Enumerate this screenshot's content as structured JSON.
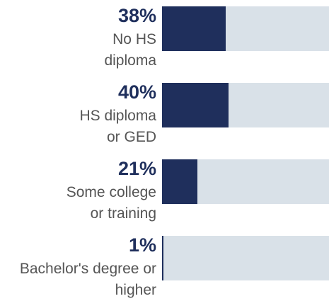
{
  "chart_data": {
    "type": "bar",
    "orientation": "horizontal",
    "categories": [
      "No HS\ndiploma",
      "HS diploma\nor GED",
      "Some college\nor training",
      "Bachelor's degree or\nhigher"
    ],
    "values": [
      38,
      40,
      21,
      1
    ],
    "value_labels": [
      "38%",
      "40%",
      "21%",
      "1%"
    ],
    "color": "#1f2f5c",
    "track_color": "#d9e1e8",
    "xlim": [
      0,
      100
    ]
  }
}
